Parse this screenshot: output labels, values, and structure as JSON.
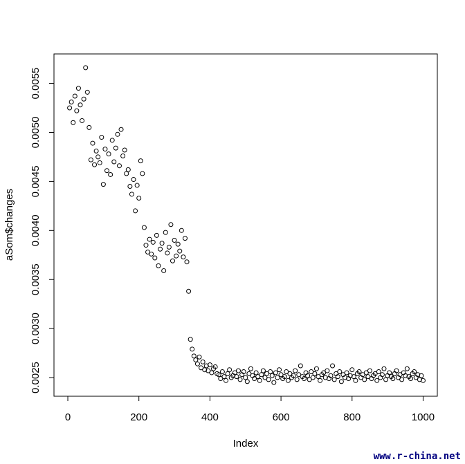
{
  "chart_data": {
    "type": "scatter",
    "x_label": "Index",
    "y_label": "aSom$changes",
    "watermark": "www.r-china.net",
    "xlim": [
      -39,
      1040
    ],
    "ylim": [
      0.00231,
      0.0058
    ],
    "xticks": [
      0,
      200,
      400,
      600,
      800,
      1000
    ],
    "yticks": [
      0.0025,
      {
        "value": 0.003,
        "label": "0.0030"
      },
      0.0035,
      {
        "value": 0.004,
        "label": "0.0040"
      },
      0.0045,
      {
        "value": 0.005,
        "label": "0.0050"
      },
      0.0055
    ],
    "color": "#000000",
    "x": [
      5,
      10,
      15,
      20,
      25,
      30,
      35,
      40,
      45,
      50,
      55,
      60,
      65,
      70,
      75,
      80,
      85,
      90,
      95,
      100,
      105,
      110,
      115,
      120,
      125,
      130,
      135,
      140,
      145,
      150,
      155,
      160,
      165,
      170,
      175,
      180,
      185,
      190,
      195,
      200,
      205,
      210,
      215,
      220,
      225,
      230,
      235,
      240,
      245,
      250,
      255,
      260,
      265,
      270,
      275,
      280,
      285,
      290,
      295,
      300,
      305,
      310,
      315,
      320,
      325,
      330,
      335,
      340,
      345,
      350,
      355,
      360,
      365,
      370,
      375,
      380,
      385,
      390,
      395,
      400,
      405,
      410,
      415,
      420,
      425,
      430,
      435,
      440,
      445,
      450,
      455,
      460,
      465,
      470,
      475,
      480,
      485,
      490,
      495,
      500,
      505,
      510,
      515,
      520,
      525,
      530,
      535,
      540,
      545,
      550,
      555,
      560,
      565,
      570,
      575,
      580,
      585,
      590,
      595,
      600,
      605,
      610,
      615,
      620,
      625,
      630,
      635,
      640,
      645,
      650,
      655,
      660,
      665,
      670,
      675,
      680,
      685,
      690,
      695,
      700,
      705,
      710,
      715,
      720,
      725,
      730,
      735,
      740,
      745,
      750,
      755,
      760,
      765,
      770,
      775,
      780,
      785,
      790,
      795,
      800,
      805,
      810,
      815,
      820,
      825,
      830,
      835,
      840,
      845,
      850,
      855,
      860,
      865,
      870,
      875,
      880,
      885,
      890,
      895,
      900,
      905,
      910,
      915,
      920,
      925,
      930,
      935,
      940,
      945,
      950,
      955,
      960,
      965,
      970,
      975,
      980,
      985,
      990,
      995,
      1000
    ],
    "values": [
      0.00525,
      0.00531,
      0.0051,
      0.00537,
      0.00522,
      0.00545,
      0.00528,
      0.00512,
      0.00534,
      0.00566,
      0.00541,
      0.00505,
      0.00472,
      0.00489,
      0.00467,
      0.00481,
      0.00475,
      0.00469,
      0.00495,
      0.00447,
      0.00483,
      0.00461,
      0.00478,
      0.00457,
      0.00492,
      0.0047,
      0.00484,
      0.00498,
      0.00466,
      0.00503,
      0.00476,
      0.00482,
      0.00458,
      0.00462,
      0.00445,
      0.00437,
      0.00452,
      0.0042,
      0.00446,
      0.00433,
      0.00471,
      0.00458,
      0.00403,
      0.00385,
      0.00378,
      0.00391,
      0.00376,
      0.00388,
      0.00372,
      0.00395,
      0.00364,
      0.00381,
      0.00387,
      0.00359,
      0.00398,
      0.00377,
      0.00383,
      0.00406,
      0.00369,
      0.0039,
      0.00374,
      0.00386,
      0.00379,
      0.004,
      0.00373,
      0.00392,
      0.00368,
      0.00338,
      0.00289,
      0.00279,
      0.00272,
      0.00268,
      0.00264,
      0.00271,
      0.0026,
      0.00266,
      0.00258,
      0.00262,
      0.00257,
      0.00263,
      0.00255,
      0.00259,
      0.00261,
      0.00254,
      0.00253,
      0.00249,
      0.00256,
      0.00251,
      0.00247,
      0.00254,
      0.00258,
      0.0025,
      0.00252,
      0.00255,
      0.00251,
      0.00257,
      0.00248,
      0.00253,
      0.00256,
      0.0025,
      0.00246,
      0.00254,
      0.00259,
      0.00252,
      0.00249,
      0.00255,
      0.00251,
      0.00247,
      0.00253,
      0.00257,
      0.0025,
      0.00254,
      0.00248,
      0.00256,
      0.00252,
      0.00245,
      0.00255,
      0.0025,
      0.00258,
      0.00253,
      0.00249,
      0.00251,
      0.00256,
      0.00247,
      0.00254,
      0.0025,
      0.00252,
      0.00257,
      0.00248,
      0.00253,
      0.00262,
      0.00251,
      0.00249,
      0.00255,
      0.00252,
      0.00248,
      0.00256,
      0.0025,
      0.00254,
      0.00259,
      0.00251,
      0.00247,
      0.00253,
      0.00255,
      0.0025,
      0.00257,
      0.00249,
      0.00252,
      0.00262,
      0.00248,
      0.00254,
      0.00251,
      0.00256,
      0.00246,
      0.00253,
      0.0025,
      0.00255,
      0.00249,
      0.00252,
      0.00258,
      0.00251,
      0.00247,
      0.00254,
      0.00256,
      0.0025,
      0.00253,
      0.00248,
      0.00255,
      0.00251,
      0.00257,
      0.00249,
      0.00252,
      0.00254,
      0.00247,
      0.00256,
      0.0025,
      0.00253,
      0.00259,
      0.00248,
      0.00252,
      0.00255,
      0.00251,
      0.00249,
      0.00254,
      0.00257,
      0.0025,
      0.00253,
      0.00248,
      0.00255,
      0.00252,
      0.00259,
      0.00251,
      0.00249,
      0.00254,
      0.00256,
      0.0025,
      0.00253,
      0.00248,
      0.00252,
      0.00247
    ]
  }
}
